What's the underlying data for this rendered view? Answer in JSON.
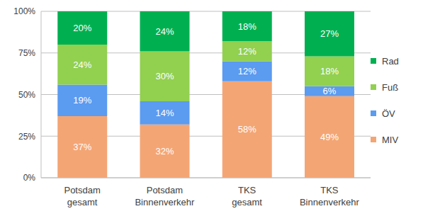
{
  "chart_data": {
    "type": "bar",
    "stacked": true,
    "grid": true,
    "legend": "right",
    "data_labels": true,
    "categories": [
      "Potsdam gesamt",
      "Potsdam Binnenverkehr",
      "TKS gesamt",
      "TKS Binnenverkehr"
    ],
    "ylim": [
      0,
      100
    ],
    "yticks": [
      {
        "value": 0,
        "label": "0%"
      },
      {
        "value": 25,
        "label": "25%"
      },
      {
        "value": 50,
        "label": "50%"
      },
      {
        "value": 75,
        "label": "75%"
      },
      {
        "value": 100,
        "label": "100%"
      }
    ],
    "series": [
      {
        "name": "MIV",
        "color": "#F4A574",
        "values": [
          37,
          32,
          58,
          49
        ],
        "value_labels": [
          "37%",
          "32%",
          "58%",
          "49%"
        ]
      },
      {
        "name": "ÖV",
        "color": "#5B9BF0",
        "values": [
          19,
          14,
          12,
          6
        ],
        "value_labels": [
          "19%",
          "14%",
          "12%",
          "6%"
        ]
      },
      {
        "name": "Fuß",
        "color": "#92D050",
        "values": [
          24,
          30,
          12,
          18
        ],
        "value_labels": [
          "24%",
          "30%",
          "12%",
          "18%"
        ]
      },
      {
        "name": "Rad",
        "color": "#00B050",
        "values": [
          20,
          24,
          18,
          27
        ],
        "value_labels": [
          "20%",
          "24%",
          "18%",
          "27%"
        ]
      }
    ]
  }
}
